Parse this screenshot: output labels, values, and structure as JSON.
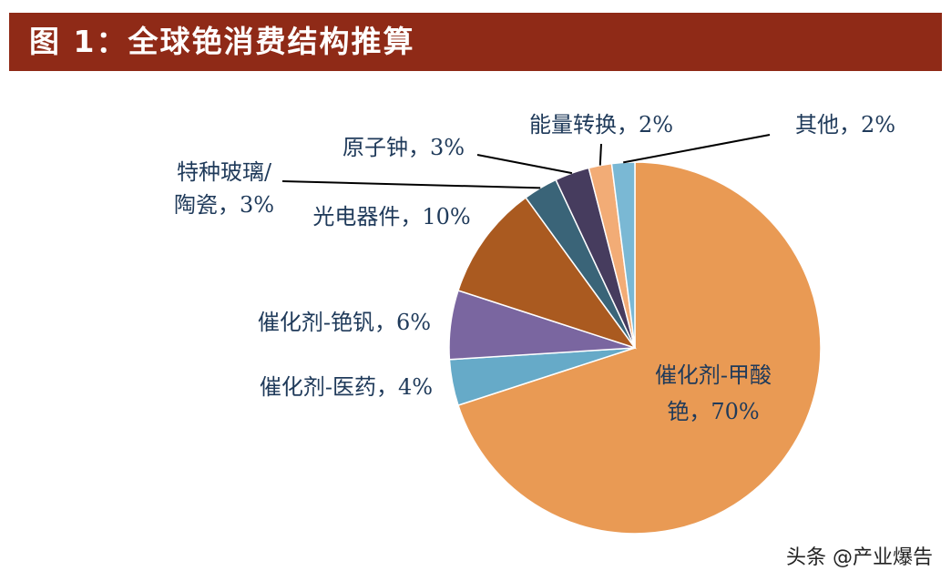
{
  "header": {
    "title": "图 1：全球铯消费结构推算"
  },
  "watermark": "头条 @产业爆告",
  "chart_data": {
    "type": "pie",
    "title": "",
    "slices": [
      {
        "label": "催化剂-甲酸铯",
        "value": 70,
        "color": "#e99a54"
      },
      {
        "label": "催化剂-医药",
        "value": 4,
        "color": "#66aac8"
      },
      {
        "label": "催化剂-铯钒",
        "value": 6,
        "color": "#7a66a0"
      },
      {
        "label": "光电器件",
        "value": 10,
        "color": "#aa5a20"
      },
      {
        "label": "特种玻璃/陶瓷",
        "value": 3,
        "color": "#3a6478"
      },
      {
        "label": "原子钟",
        "value": 3,
        "color": "#463c5e"
      },
      {
        "label": "能量转换",
        "value": 2,
        "color": "#f2ac76"
      },
      {
        "label": "其他",
        "value": 2,
        "color": "#7ab8d4"
      }
    ],
    "labels": [
      {
        "line1": "催化剂-甲酸",
        "line2": "铯，70%"
      },
      {
        "line1": "催化剂-医药，4%"
      },
      {
        "line1": "催化剂-铯钒，6%"
      },
      {
        "line1": "光电器件，10%"
      },
      {
        "line1": "特种玻璃/",
        "line2": "陶瓷，3%"
      },
      {
        "line1": "原子钟，3%"
      },
      {
        "line1": "能量转换，2%"
      },
      {
        "line1": "其他，2%"
      }
    ]
  }
}
